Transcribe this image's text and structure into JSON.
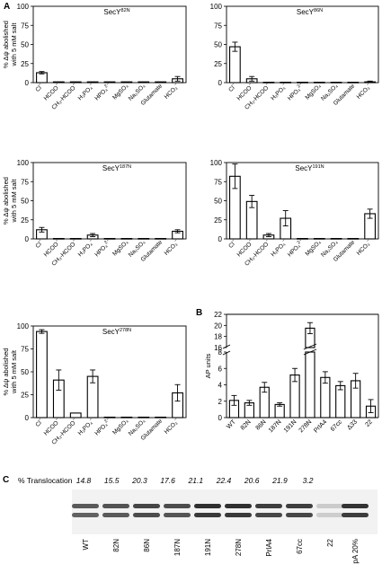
{
  "colors": {
    "ink": "#000000",
    "bar_fill": "#ffffff",
    "gel_bg": "#f2f2f2",
    "band": "#1e1e1e"
  },
  "chart_data": [
    {
      "panel": "A",
      "type": "bar",
      "title": "SecY",
      "title_sup": "82N",
      "ylabel": [
        "% Δψ abolished",
        "with 5 mM salt"
      ],
      "ylim": [
        0,
        100
      ],
      "yticks": [
        "0",
        "25",
        "50",
        "75",
        "100"
      ],
      "categories": [
        {
          "main": "Cl",
          "sup": "−"
        },
        {
          "main": "HCOO",
          "sup": "−"
        },
        {
          "main": "CH₃-HCOO",
          "sup": "−"
        },
        {
          "main": "H₂PO₄",
          "sup": "−"
        },
        {
          "main": "HPO₄",
          "sup": "2−"
        },
        {
          "main": "MgSO₄",
          "sup": ""
        },
        {
          "main": "Na₂SO₄",
          "sup": ""
        },
        {
          "main": "Glutamate",
          "sup": ""
        },
        {
          "main": "HCO₃",
          "sup": "−"
        }
      ],
      "values": [
        13,
        1,
        1,
        1,
        1,
        1,
        1,
        1,
        5
      ],
      "errors": [
        1.5,
        0,
        0,
        0,
        0,
        0,
        0,
        0,
        3
      ]
    },
    {
      "panel": "",
      "type": "bar",
      "title": "SecY",
      "title_sup": "86N",
      "ylabel": [],
      "ylim": [
        0,
        100
      ],
      "yticks": [
        "0",
        "25",
        "50",
        "75",
        "100"
      ],
      "categories": [
        {
          "main": "Cl",
          "sup": "−"
        },
        {
          "main": "HCOO",
          "sup": "−"
        },
        {
          "main": "CH₃-HCOO",
          "sup": "−"
        },
        {
          "main": "H₂PO₄",
          "sup": "−"
        },
        {
          "main": "HPO₄",
          "sup": "2−"
        },
        {
          "main": "MgSO₄",
          "sup": ""
        },
        {
          "main": "Na₂SO₄",
          "sup": ""
        },
        {
          "main": "Glutamate",
          "sup": ""
        },
        {
          "main": "HCO₃",
          "sup": "−"
        }
      ],
      "values": [
        47,
        5,
        0.5,
        0.5,
        0.5,
        0.5,
        0.5,
        0.5,
        1
      ],
      "errors": [
        6,
        3,
        0,
        0,
        0,
        0,
        0,
        0,
        1
      ]
    },
    {
      "panel": "",
      "type": "bar",
      "title": "SecY",
      "title_sup": "187N",
      "ylabel": [
        "% Δψ abolished",
        "with 5 mM salt"
      ],
      "ylim": [
        0,
        100
      ],
      "yticks": [
        "0",
        "25",
        "50",
        "75",
        "100"
      ],
      "categories": [
        {
          "main": "Cl",
          "sup": "−"
        },
        {
          "main": "HCOO",
          "sup": "−"
        },
        {
          "main": "CH₃-HCOO",
          "sup": "−"
        },
        {
          "main": "H₂PO₄",
          "sup": "−"
        },
        {
          "main": "HPO₄",
          "sup": "2−"
        },
        {
          "main": "MgSO₄",
          "sup": ""
        },
        {
          "main": "Na₂SO₄",
          "sup": ""
        },
        {
          "main": "Glutamate",
          "sup": ""
        },
        {
          "main": "HCO₃",
          "sup": "−"
        }
      ],
      "values": [
        12,
        0.5,
        0.5,
        5,
        0.5,
        0.5,
        0.5,
        0.5,
        10
      ],
      "errors": [
        3,
        0,
        0,
        2,
        0,
        0,
        0,
        0,
        2
      ]
    },
    {
      "panel": "",
      "type": "bar",
      "title": "SecY",
      "title_sup": "191N",
      "ylabel": [],
      "ylim": [
        0,
        100
      ],
      "yticks": [
        "0",
        "25",
        "50",
        "75",
        "100"
      ],
      "categories": [
        {
          "main": "Cl",
          "sup": "−"
        },
        {
          "main": "HCOO",
          "sup": "−"
        },
        {
          "main": "CH₃-HCOO",
          "sup": "−"
        },
        {
          "main": "H₂PO₄",
          "sup": "−"
        },
        {
          "main": "HPO₄",
          "sup": "2−"
        },
        {
          "main": "MgSO₄",
          "sup": ""
        },
        {
          "main": "Na₂SO₄",
          "sup": ""
        },
        {
          "main": "Glutamate",
          "sup": ""
        },
        {
          "main": "HCO₃",
          "sup": "−"
        }
      ],
      "values": [
        82,
        49,
        5,
        27,
        0.5,
        0.5,
        0.5,
        0.5,
        33
      ],
      "errors": [
        16,
        8,
        2,
        10,
        0,
        0,
        0,
        0,
        6
      ]
    },
    {
      "panel": "",
      "type": "bar",
      "title": "SecY",
      "title_sup": "278N",
      "ylabel": [
        "% Δψ abolished",
        "with 5 mM salt"
      ],
      "ylim": [
        0,
        100
      ],
      "yticks": [
        "0",
        "25",
        "50",
        "75",
        "100"
      ],
      "categories": [
        {
          "main": "Cl",
          "sup": "−"
        },
        {
          "main": "HCOO",
          "sup": "−"
        },
        {
          "main": "CH₃-HCOO",
          "sup": "−"
        },
        {
          "main": "H₂PO₄",
          "sup": "−"
        },
        {
          "main": "HPO₄",
          "sup": "2−"
        },
        {
          "main": "MgSO₄",
          "sup": ""
        },
        {
          "main": "Na₂SO₄",
          "sup": ""
        },
        {
          "main": "Glutamate",
          "sup": ""
        },
        {
          "main": "HCO₃",
          "sup": "−"
        }
      ],
      "values": [
        94,
        41,
        5,
        45,
        0.5,
        0.5,
        0.5,
        0.5,
        27
      ],
      "errors": [
        2,
        11,
        0,
        7,
        0,
        0,
        0,
        0,
        9
      ]
    },
    {
      "panel": "B",
      "type": "bar",
      "title": "",
      "ylabel": [
        "AP units"
      ],
      "axis_break": [
        8,
        16
      ],
      "yticks_low": [
        "0",
        "2",
        "4",
        "6",
        "8"
      ],
      "yticks_high": [
        "16",
        "18",
        "20",
        "22"
      ],
      "categories": [
        "WT",
        "82N",
        "86N",
        "187N",
        "191N",
        "278N",
        "PrlA4",
        "67cc",
        "Δ33",
        "22"
      ],
      "values": [
        2.1,
        1.8,
        3.7,
        1.6,
        5.2,
        19.5,
        4.9,
        3.9,
        4.5,
        1.4
      ],
      "errors": [
        0.6,
        0.3,
        0.6,
        0.2,
        0.8,
        1.0,
        0.7,
        0.5,
        0.9,
        0.8
      ]
    }
  ],
  "panel_c": {
    "letter": "C",
    "header": "% Translocation",
    "values": [
      "14.8",
      "15.5",
      "20.3",
      "17.6",
      "21.1",
      "22.4",
      "20.6",
      "21.9",
      "3.2"
    ],
    "lanes": [
      "WT",
      "82N",
      "86N",
      "187N",
      "191N",
      "278N",
      "PrlA4",
      "67cc",
      "22",
      "pOmpA 20%"
    ],
    "band_strength": [
      0.72,
      0.75,
      0.82,
      0.78,
      0.92,
      0.92,
      0.85,
      0.85,
      0.18,
      0.9
    ]
  }
}
